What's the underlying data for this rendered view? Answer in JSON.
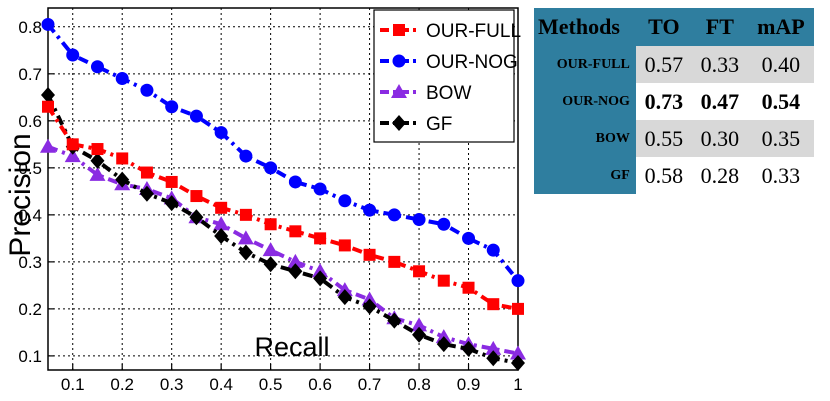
{
  "chart_data": {
    "type": "line",
    "xlabel": "Recall",
    "ylabel": "Precision",
    "xlim": [
      0.05,
      1.0
    ],
    "ylim": [
      0.07,
      0.84
    ],
    "xticks": [
      "0.1",
      "0.2",
      "0.3",
      "0.4",
      "0.5",
      "0.6",
      "0.7",
      "0.8",
      "0.9",
      "1"
    ],
    "yticks": [
      "0.1",
      "0.2",
      "0.3",
      "0.4",
      "0.5",
      "0.6",
      "0.7",
      "0.8"
    ],
    "grid": true,
    "legend_position": "top-right",
    "x": [
      0.05,
      0.1,
      0.15,
      0.2,
      0.25,
      0.3,
      0.35,
      0.4,
      0.45,
      0.5,
      0.55,
      0.6,
      0.65,
      0.7,
      0.75,
      0.8,
      0.85,
      0.9,
      0.95,
      1.0
    ],
    "series": [
      {
        "name": "OUR-FULL",
        "color": "#ff0000",
        "marker": "square",
        "values": [
          0.63,
          0.55,
          0.54,
          0.52,
          0.49,
          0.47,
          0.44,
          0.415,
          0.4,
          0.38,
          0.365,
          0.35,
          0.335,
          0.315,
          0.3,
          0.28,
          0.26,
          0.245,
          0.21,
          0.2
        ]
      },
      {
        "name": "OUR-NOG",
        "color": "#0000ff",
        "marker": "circle",
        "values": [
          0.805,
          0.74,
          0.715,
          0.69,
          0.665,
          0.63,
          0.61,
          0.575,
          0.525,
          0.5,
          0.47,
          0.455,
          0.43,
          0.41,
          0.4,
          0.39,
          0.38,
          0.35,
          0.325,
          0.26
        ]
      },
      {
        "name": "BOW",
        "color": "#8a2be2",
        "marker": "triangle",
        "values": [
          0.545,
          0.525,
          0.485,
          0.465,
          0.455,
          0.435,
          0.395,
          0.38,
          0.35,
          0.325,
          0.3,
          0.28,
          0.24,
          0.22,
          0.18,
          0.165,
          0.14,
          0.125,
          0.115,
          0.105
        ]
      },
      {
        "name": "GF",
        "color": "#000000",
        "marker": "diamond",
        "values": [
          0.655,
          0.545,
          0.515,
          0.475,
          0.445,
          0.425,
          0.395,
          0.355,
          0.32,
          0.295,
          0.28,
          0.265,
          0.225,
          0.205,
          0.175,
          0.145,
          0.125,
          0.115,
          0.095,
          0.085
        ]
      }
    ]
  },
  "table": {
    "headers": [
      "Methods",
      "TO",
      "FT",
      "mAP"
    ],
    "rows": [
      {
        "method": "OUR-FULL",
        "to": "0.57",
        "ft": "0.33",
        "map": "0.40"
      },
      {
        "method": "OUR-NOG",
        "to": "0.73",
        "ft": "0.47",
        "map": "0.54"
      },
      {
        "method": "BOW",
        "to": "0.55",
        "ft": "0.30",
        "map": "0.35"
      },
      {
        "method": "GF",
        "to": "0.58",
        "ft": "0.28",
        "map": "0.33"
      }
    ]
  },
  "colors": {
    "table_header": "#2f7e9f",
    "table_shade": "#d8d8d8"
  }
}
